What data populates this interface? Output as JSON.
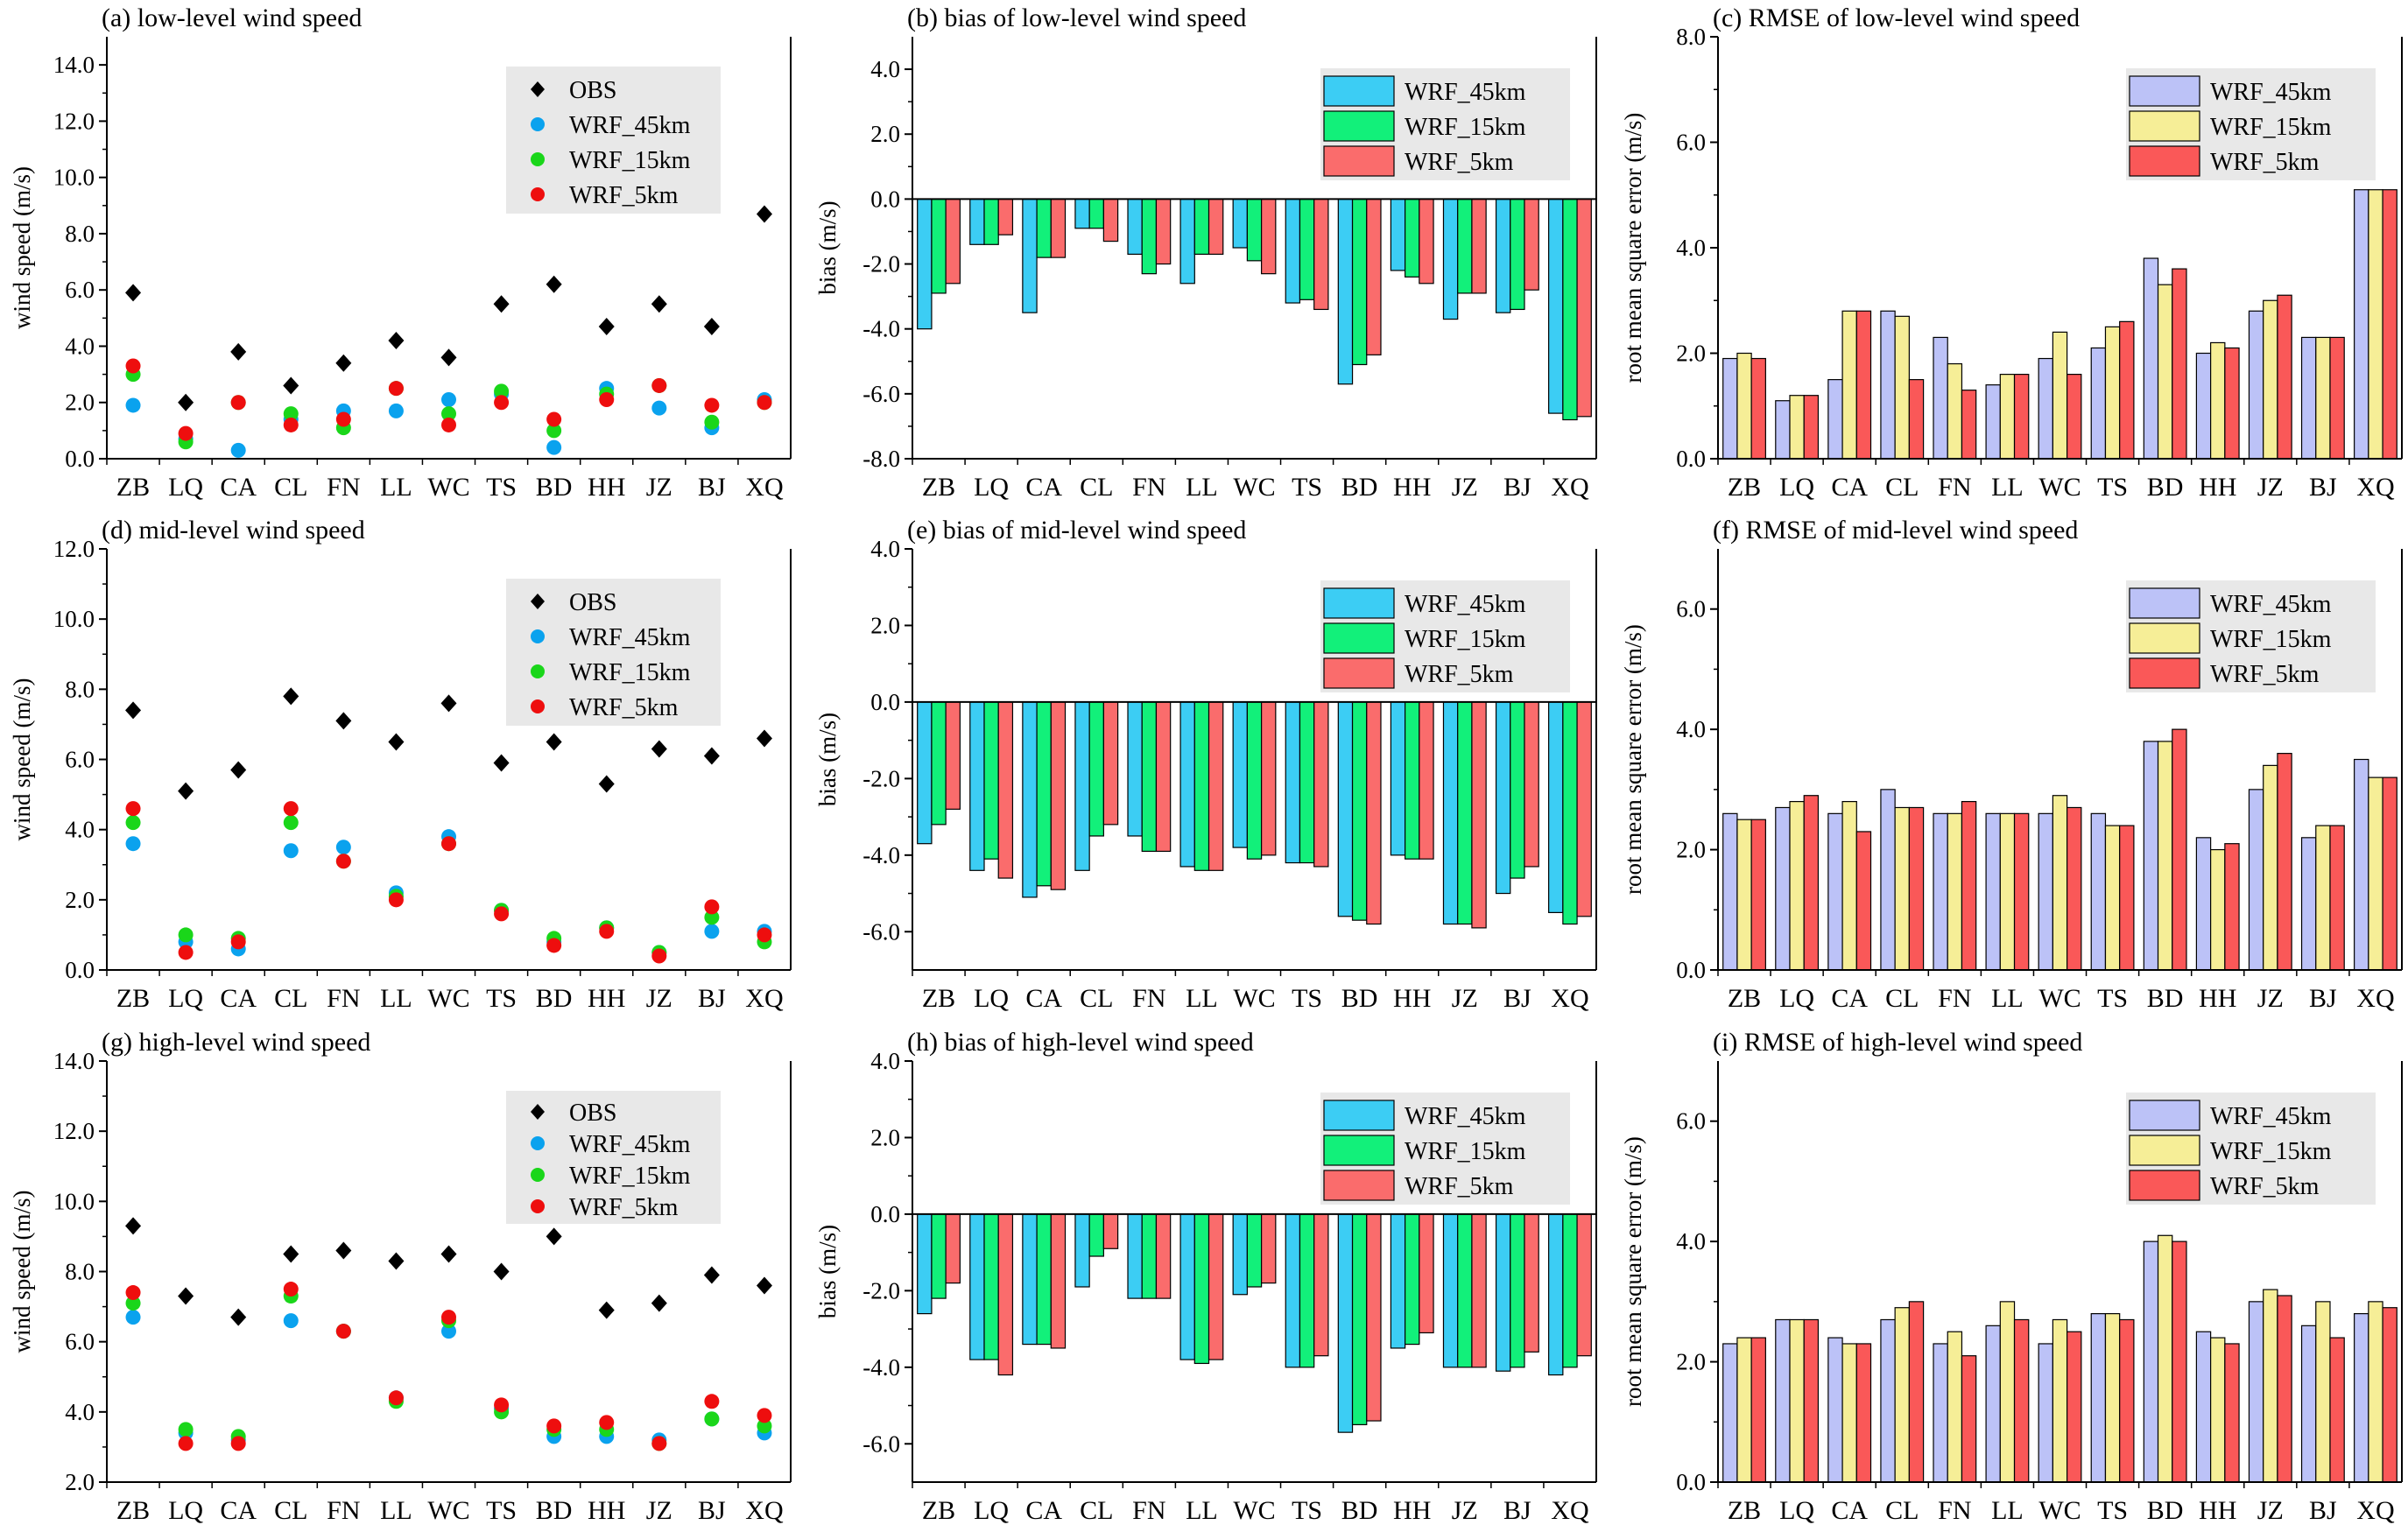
{
  "figure": {
    "categories": [
      "ZB",
      "LQ",
      "CA",
      "CL",
      "FN",
      "LL",
      "WC",
      "TS",
      "BD",
      "HH",
      "JZ",
      "BJ",
      "XQ"
    ],
    "colors": {
      "obs": "#000000",
      "scatter": {
        "WRF_45km": "#0aa2ee",
        "WRF_15km": "#1ad61a",
        "WRF_5km": "#ee0e0e"
      },
      "bias": {
        "WRF_45km": "#3ccdf4",
        "WRF_15km": "#12f07a",
        "WRF_5km": "#fa6c6c"
      },
      "rmse": {
        "WRF_45km": "#bcc2f7",
        "WRF_15km": "#f6ee97",
        "WRF_5km": "#fa5858"
      }
    }
  },
  "chart_data": [
    {
      "id": "a",
      "type": "scatter",
      "title": "(a) low-level wind speed",
      "ylabel": "wind speed (m/s)",
      "ylim": [
        0,
        15
      ],
      "yticks": [
        0,
        2,
        4,
        6,
        8,
        10,
        12,
        14
      ],
      "tick_labels": [
        "0.0",
        "2.0",
        "4.0",
        "6.0",
        "8.0",
        "10.0",
        "12.0",
        "14.0"
      ],
      "legend_position": "top-right",
      "series": [
        {
          "name": "OBS",
          "values": [
            5.9,
            2.0,
            3.8,
            2.6,
            3.4,
            4.2,
            3.6,
            5.5,
            6.2,
            4.7,
            5.5,
            4.7,
            8.7
          ]
        },
        {
          "name": "WRF_45km",
          "values": [
            1.9,
            0.7,
            0.3,
            1.4,
            1.7,
            1.7,
            2.1,
            2.3,
            0.4,
            2.5,
            1.8,
            1.1,
            2.1
          ]
        },
        {
          "name": "WRF_15km",
          "values": [
            3.0,
            0.6,
            2.0,
            1.6,
            1.1,
            2.5,
            1.6,
            2.4,
            1.0,
            2.3,
            2.6,
            1.3,
            2.0
          ]
        },
        {
          "name": "WRF_5km",
          "values": [
            3.3,
            0.9,
            2.0,
            1.2,
            1.4,
            2.5,
            1.2,
            2.0,
            1.4,
            2.1,
            2.6,
            1.9,
            2.0
          ]
        }
      ]
    },
    {
      "id": "b",
      "type": "bar",
      "title": "(b) bias of low-level wind speed",
      "ylabel": "bias (m/s)",
      "ylim": [
        -8,
        5
      ],
      "yticks": [
        -8,
        -6,
        -4,
        -2,
        0,
        2,
        4
      ],
      "tick_labels": [
        "-8.0",
        "-6.0",
        "-4.0",
        "-2.0",
        "0.0",
        "2.0",
        "4.0"
      ],
      "legend_position": "top-right",
      "series": [
        {
          "name": "WRF_45km",
          "values": [
            -4.0,
            -1.4,
            -3.5,
            -0.9,
            -1.7,
            -2.6,
            -1.5,
            -3.2,
            -5.7,
            -2.2,
            -3.7,
            -3.5,
            -6.6
          ]
        },
        {
          "name": "WRF_15km",
          "values": [
            -2.9,
            -1.4,
            -1.8,
            -0.9,
            -2.3,
            -1.7,
            -1.9,
            -3.1,
            -5.1,
            -2.4,
            -2.9,
            -3.4,
            -6.8
          ]
        },
        {
          "name": "WRF_5km",
          "values": [
            -2.6,
            -1.1,
            -1.8,
            -1.3,
            -2.0,
            -1.7,
            -2.3,
            -3.4,
            -4.8,
            -2.6,
            -2.9,
            -2.8,
            -6.7
          ]
        }
      ]
    },
    {
      "id": "c",
      "type": "bar",
      "title": "(c) RMSE of low-level wind speed",
      "ylabel": "root mean square error (m/s)",
      "ylim": [
        0,
        8
      ],
      "yticks": [
        0,
        2,
        4,
        6,
        8
      ],
      "tick_labels": [
        "0.0",
        "2.0",
        "4.0",
        "6.0",
        "8.0"
      ],
      "legend_position": "top-right",
      "series": [
        {
          "name": "WRF_45km",
          "values": [
            1.9,
            1.1,
            1.5,
            2.8,
            2.3,
            1.4,
            1.9,
            2.1,
            3.8,
            2.0,
            2.8,
            2.3,
            5.1
          ]
        },
        {
          "name": "WRF_15km",
          "values": [
            2.0,
            1.2,
            2.8,
            2.7,
            1.8,
            1.6,
            2.4,
            2.5,
            3.3,
            2.2,
            3.0,
            2.3,
            5.1
          ]
        },
        {
          "name": "WRF_5km",
          "values": [
            1.9,
            1.2,
            2.8,
            1.5,
            1.3,
            1.6,
            1.6,
            2.6,
            3.6,
            2.1,
            3.1,
            2.3,
            5.1
          ]
        }
      ]
    },
    {
      "id": "d",
      "type": "scatter",
      "title": "(d) mid-level wind speed",
      "ylabel": "wind speed (m/s)",
      "ylim": [
        0,
        12
      ],
      "yticks": [
        0,
        2,
        4,
        6,
        8,
        10,
        12
      ],
      "tick_labels": [
        "0.0",
        "2.0",
        "4.0",
        "6.0",
        "8.0",
        "10.0",
        "12.0"
      ],
      "legend_position": "top-right",
      "series": [
        {
          "name": "OBS",
          "values": [
            7.4,
            5.1,
            5.7,
            7.8,
            7.1,
            6.5,
            7.6,
            5.9,
            6.5,
            5.3,
            6.3,
            6.1,
            6.6
          ]
        },
        {
          "name": "WRF_45km",
          "values": [
            3.6,
            0.8,
            0.6,
            3.4,
            3.5,
            2.2,
            3.8,
            1.7,
            0.8,
            1.2,
            0.5,
            1.1,
            1.1
          ]
        },
        {
          "name": "WRF_15km",
          "values": [
            4.2,
            1.0,
            0.9,
            4.2,
            3.1,
            2.1,
            3.6,
            1.7,
            0.9,
            1.2,
            0.5,
            1.5,
            0.8
          ]
        },
        {
          "name": "WRF_5km",
          "values": [
            4.6,
            0.5,
            0.8,
            4.6,
            3.1,
            2.0,
            3.6,
            1.6,
            0.7,
            1.1,
            0.4,
            1.8,
            1.0
          ]
        }
      ]
    },
    {
      "id": "e",
      "type": "bar",
      "title": "(e) bias of mid-level wind speed",
      "ylabel": "bias (m/s)",
      "ylim": [
        -7,
        4
      ],
      "yticks": [
        -6,
        -4,
        -2,
        0,
        2,
        4
      ],
      "tick_labels": [
        "-6.0",
        "-4.0",
        "-2.0",
        "0.0",
        "2.0",
        "4.0"
      ],
      "legend_position": "top-right",
      "series": [
        {
          "name": "WRF_45km",
          "values": [
            -3.7,
            -4.4,
            -5.1,
            -4.4,
            -3.5,
            -4.3,
            -3.8,
            -4.2,
            -5.6,
            -4.0,
            -5.8,
            -5.0,
            -5.5
          ]
        },
        {
          "name": "WRF_15km",
          "values": [
            -3.2,
            -4.1,
            -4.8,
            -3.5,
            -3.9,
            -4.4,
            -4.1,
            -4.2,
            -5.7,
            -4.1,
            -5.8,
            -4.6,
            -5.8
          ]
        },
        {
          "name": "WRF_5km",
          "values": [
            -2.8,
            -4.6,
            -4.9,
            -3.2,
            -3.9,
            -4.4,
            -4.0,
            -4.3,
            -5.8,
            -4.1,
            -5.9,
            -4.3,
            -5.6
          ]
        }
      ]
    },
    {
      "id": "f",
      "type": "bar",
      "title": "(f) RMSE of mid-level wind speed",
      "ylabel": "root mean square error (m/s)",
      "ylim": [
        0,
        7
      ],
      "yticks": [
        0,
        2,
        4,
        6
      ],
      "tick_labels": [
        "0.0",
        "2.0",
        "4.0",
        "6.0"
      ],
      "legend_position": "top-right",
      "series": [
        {
          "name": "WRF_45km",
          "values": [
            2.6,
            2.7,
            2.6,
            3.0,
            2.6,
            2.6,
            2.6,
            2.6,
            3.8,
            2.2,
            3.0,
            2.2,
            3.5
          ]
        },
        {
          "name": "WRF_15km",
          "values": [
            2.5,
            2.8,
            2.8,
            2.7,
            2.6,
            2.6,
            2.9,
            2.4,
            3.8,
            2.0,
            3.4,
            2.4,
            3.2
          ]
        },
        {
          "name": "WRF_5km",
          "values": [
            2.5,
            2.9,
            2.3,
            2.7,
            2.8,
            2.6,
            2.7,
            2.4,
            4.0,
            2.1,
            3.6,
            2.4,
            3.2
          ]
        }
      ]
    },
    {
      "id": "g",
      "type": "scatter",
      "title": "(g) high-level wind speed",
      "ylabel": "wind speed (m/s)",
      "ylim": [
        2,
        14
      ],
      "yticks": [
        2,
        4,
        6,
        8,
        10,
        12,
        14
      ],
      "tick_labels": [
        "2.0",
        "4.0",
        "6.0",
        "8.0",
        "10.0",
        "12.0",
        "14.0"
      ],
      "legend_position": "top-right",
      "series": [
        {
          "name": "OBS",
          "values": [
            9.3,
            7.3,
            6.7,
            8.5,
            8.6,
            8.3,
            8.5,
            8.0,
            9.0,
            6.9,
            7.1,
            7.9,
            7.6
          ]
        },
        {
          "name": "WRF_45km",
          "values": [
            6.7,
            3.4,
            3.2,
            6.6,
            6.3,
            4.4,
            6.3,
            4.1,
            3.3,
            3.3,
            3.2,
            3.8,
            3.4
          ]
        },
        {
          "name": "WRF_15km",
          "values": [
            7.1,
            3.5,
            3.3,
            7.3,
            6.3,
            4.3,
            6.6,
            4.0,
            3.5,
            3.5,
            3.1,
            3.8,
            3.6
          ]
        },
        {
          "name": "WRF_5km",
          "values": [
            7.4,
            3.1,
            3.1,
            7.5,
            6.3,
            4.4,
            6.7,
            4.2,
            3.6,
            3.7,
            3.1,
            4.3,
            3.9
          ]
        }
      ]
    },
    {
      "id": "h",
      "type": "bar",
      "title": "(h) bias of high-level wind speed",
      "ylabel": "bias (m/s)",
      "ylim": [
        -7,
        4
      ],
      "yticks": [
        -6,
        -4,
        -2,
        0,
        2,
        4
      ],
      "tick_labels": [
        "-6.0",
        "-4.0",
        "-2.0",
        "0.0",
        "2.0",
        "4.0"
      ],
      "legend_position": "top-right",
      "series": [
        {
          "name": "WRF_45km",
          "values": [
            -2.6,
            -3.8,
            -3.4,
            -1.9,
            -2.2,
            -3.8,
            -2.1,
            -4.0,
            -5.7,
            -3.5,
            -4.0,
            -4.1,
            -4.2
          ]
        },
        {
          "name": "WRF_15km",
          "values": [
            -2.2,
            -3.8,
            -3.4,
            -1.1,
            -2.2,
            -3.9,
            -1.9,
            -4.0,
            -5.5,
            -3.4,
            -4.0,
            -4.0,
            -4.0
          ]
        },
        {
          "name": "WRF_5km",
          "values": [
            -1.8,
            -4.2,
            -3.5,
            -0.9,
            -2.2,
            -3.8,
            -1.8,
            -3.7,
            -5.4,
            -3.1,
            -4.0,
            -3.6,
            -3.7
          ]
        }
      ]
    },
    {
      "id": "i",
      "type": "bar",
      "title": "(i) RMSE of high-level wind speed",
      "ylabel": "root mean square error (m/s)",
      "ylim": [
        0,
        7
      ],
      "yticks": [
        0,
        2,
        4,
        6
      ],
      "tick_labels": [
        "0.0",
        "2.0",
        "4.0",
        "6.0"
      ],
      "legend_position": "top-right",
      "series": [
        {
          "name": "WRF_45km",
          "values": [
            2.3,
            2.7,
            2.4,
            2.7,
            2.3,
            2.6,
            2.3,
            2.8,
            4.0,
            2.5,
            3.0,
            2.6,
            2.8
          ]
        },
        {
          "name": "WRF_15km",
          "values": [
            2.4,
            2.7,
            2.3,
            2.9,
            2.5,
            3.0,
            2.7,
            2.8,
            4.1,
            2.4,
            3.2,
            3.0,
            3.0
          ]
        },
        {
          "name": "WRF_5km",
          "values": [
            2.4,
            2.7,
            2.3,
            3.0,
            2.1,
            2.7,
            2.5,
            2.7,
            4.0,
            2.3,
            3.1,
            2.4,
            2.9
          ]
        }
      ]
    }
  ]
}
